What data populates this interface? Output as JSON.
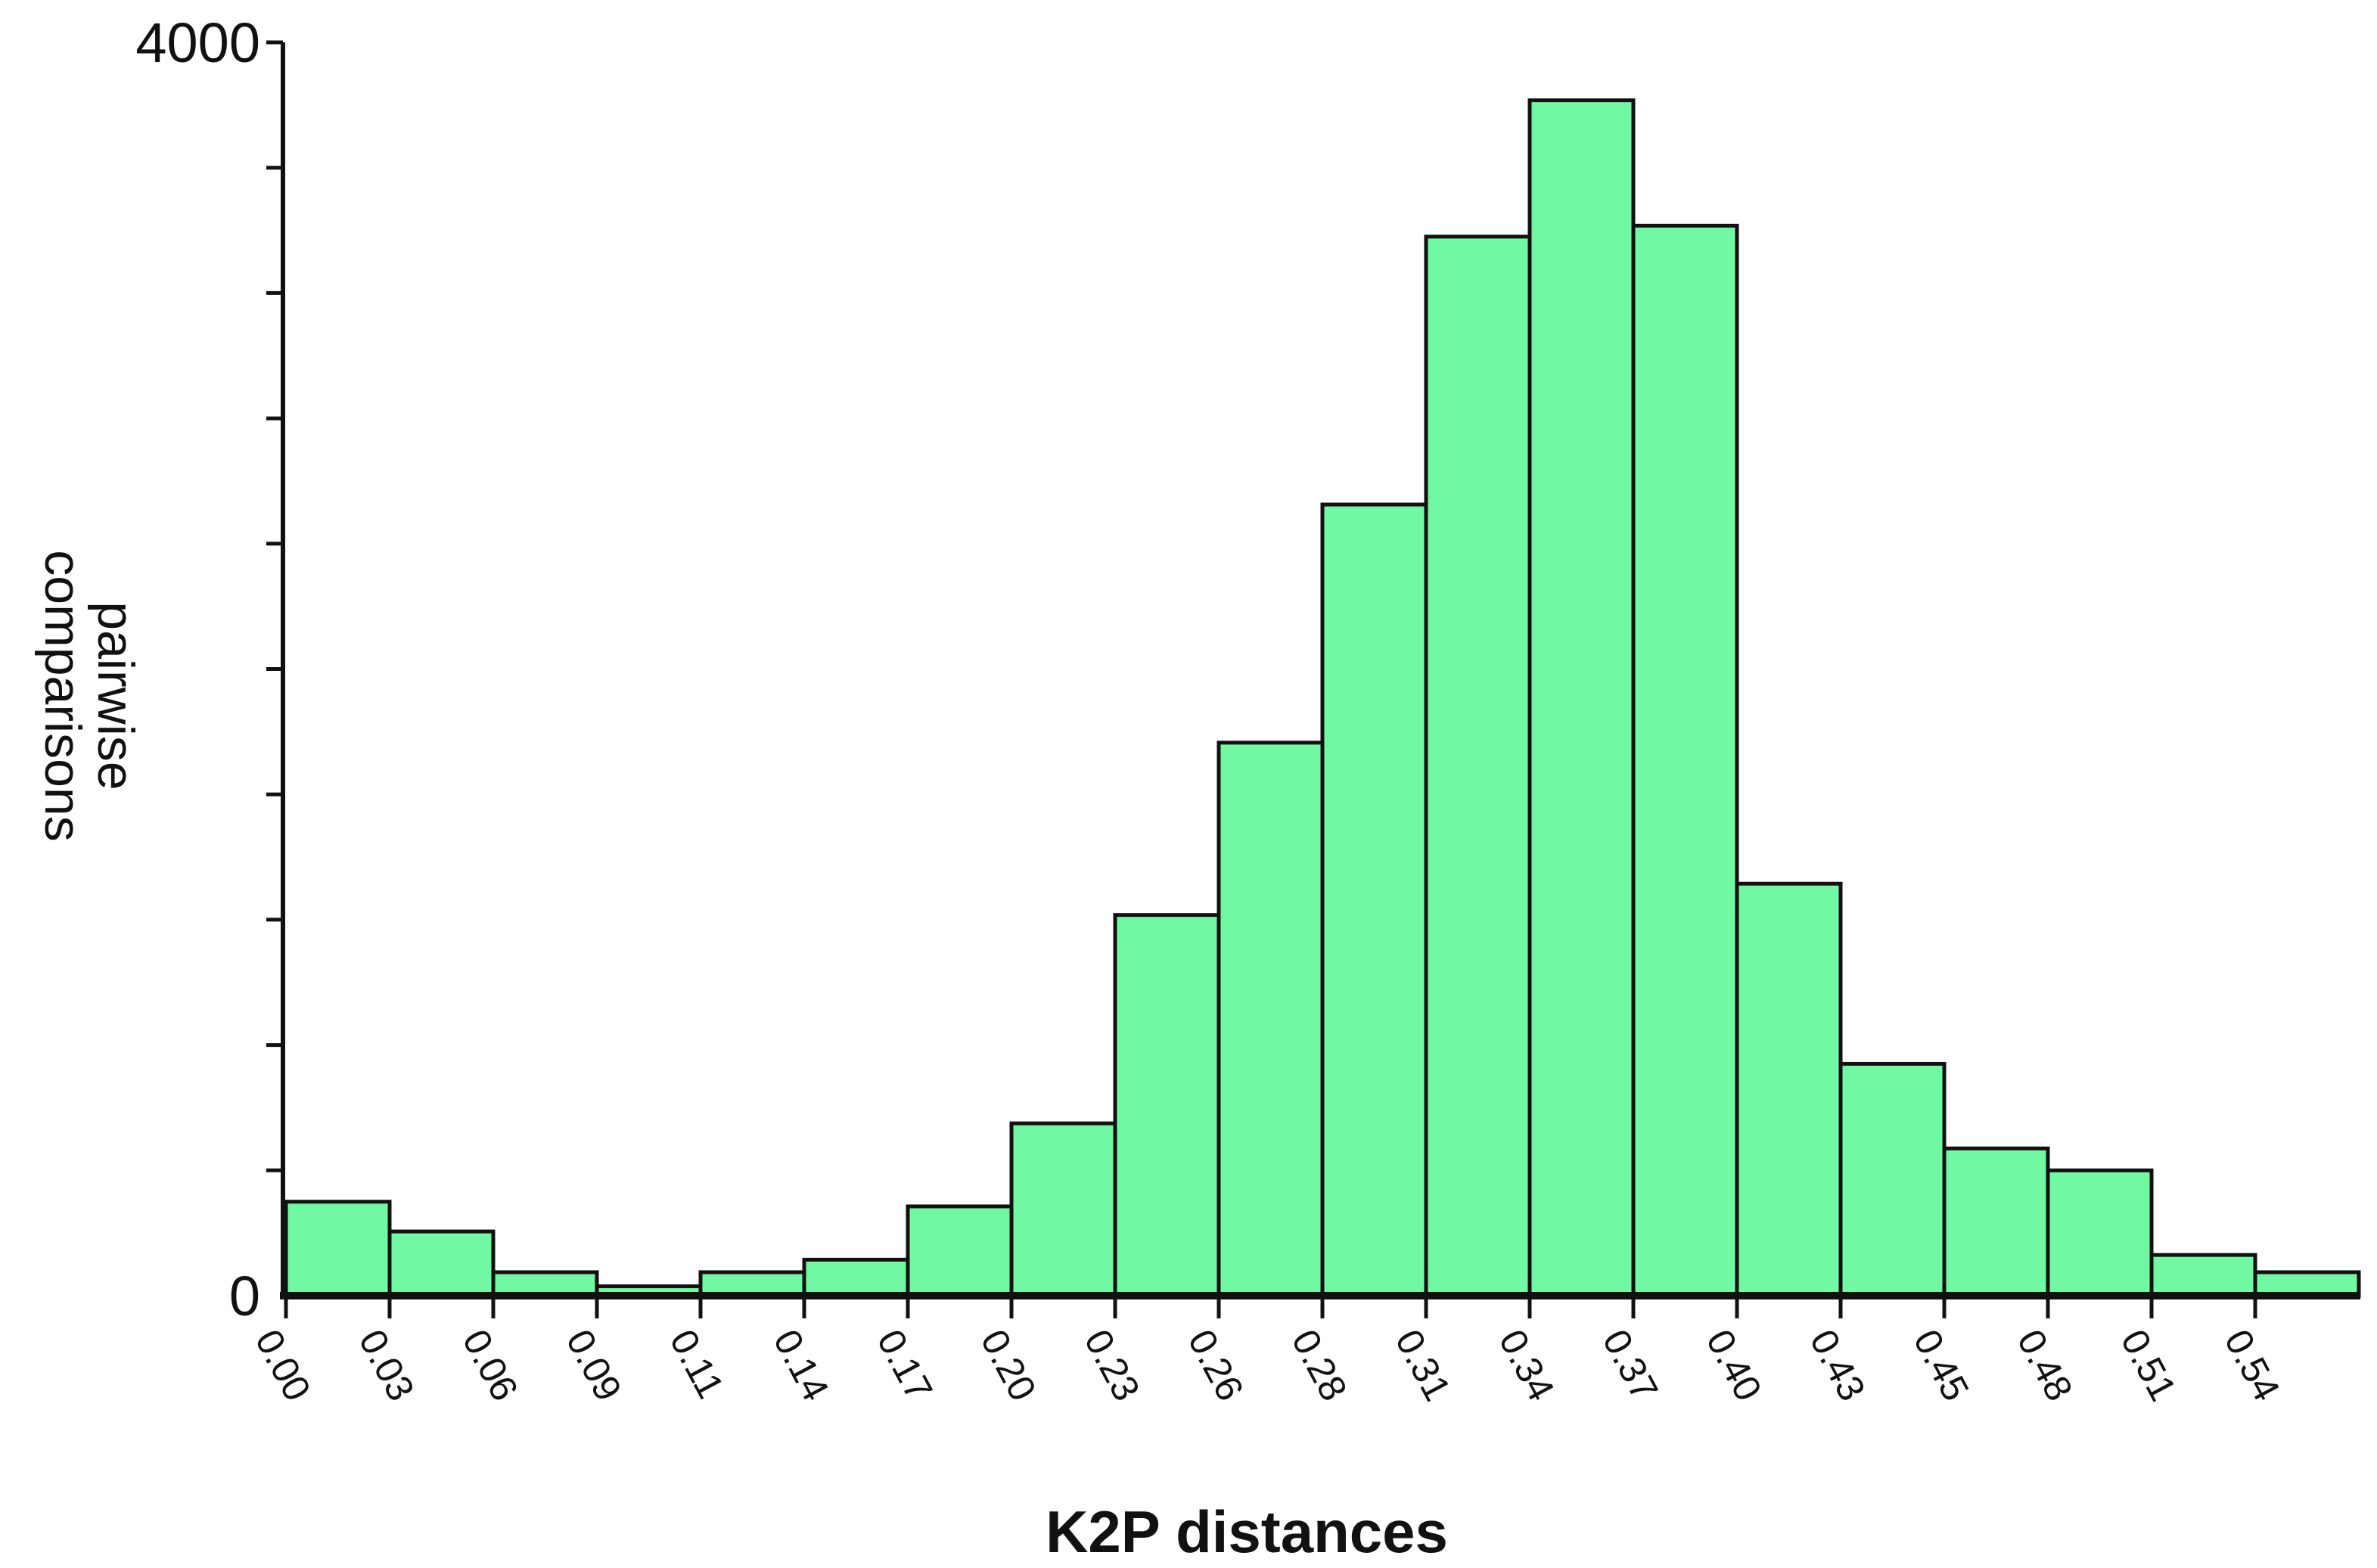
{
  "chart_data": {
    "type": "bar",
    "title": "",
    "xlabel": "K2P distances",
    "ylabel_lines": [
      "pairwise",
      "comparisons"
    ],
    "ylim": [
      0,
      4000
    ],
    "y_labeled_ticks": [
      "4000",
      "0"
    ],
    "y_minor_tick_values": [
      400,
      800,
      1200,
      1600,
      2000,
      2400,
      2800,
      3200,
      3600
    ],
    "bar_color": "#70f9a2",
    "categories": [
      "0.00",
      "0.03",
      "0.06",
      "0.09",
      "0.11",
      "0.14",
      "0.17",
      "0.20",
      "0.23",
      "0.26",
      "0.28",
      "0.31",
      "0.34",
      "0.37",
      "0.40",
      "0.43",
      "0.45",
      "0.48",
      "0.51",
      "0.54"
    ],
    "values": [
      300,
      205,
      75,
      30,
      75,
      115,
      285,
      550,
      1215,
      1765,
      2525,
      3380,
      3815,
      3415,
      1315,
      740,
      470,
      400,
      130,
      75
    ],
    "grid": false,
    "legend": "none"
  }
}
